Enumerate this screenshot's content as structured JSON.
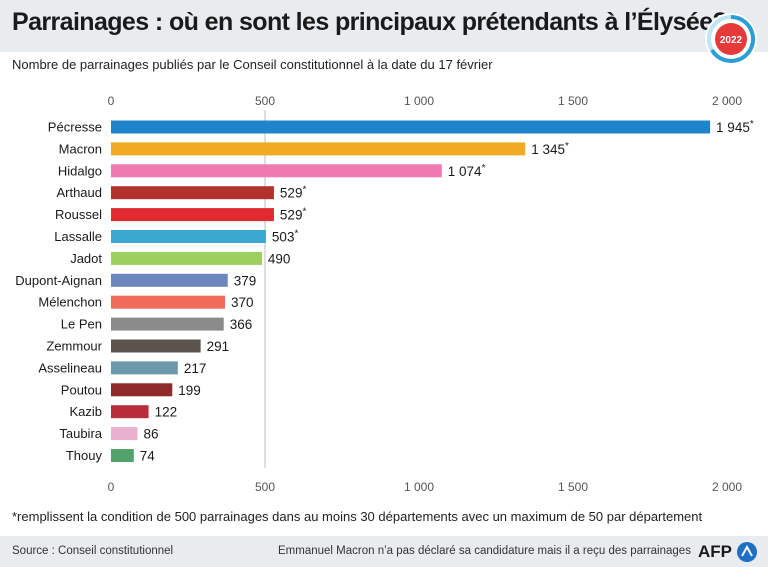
{
  "header": {
    "title": "Parrainages : où en sont les principaux prétendants à l’Élysée?",
    "badge": "2022"
  },
  "subtitle": "Nombre de parrainages publiés par le Conseil constitutionnel à la date du 17 février",
  "footnote": "*remplissent la condition de 500 parrainages dans au moins 30 départements avec un maximum de 50 par département",
  "footer": {
    "source": "Source : Conseil constitutionnel",
    "note": "Emmanuel Macron n’a pas déclaré sa candidature mais il a reçu des parrainages",
    "logo": "AFP"
  },
  "chart_data": {
    "type": "bar",
    "orientation": "horizontal",
    "xlim": [
      0,
      2000
    ],
    "ticks": [
      0,
      500,
      1000,
      1500,
      2000
    ],
    "tick_labels": [
      "0",
      "500",
      "1 000",
      "1 500",
      "2 000"
    ],
    "reference_line": 500,
    "categories": [
      "Pécresse",
      "Macron",
      "Hidalgo",
      "Arthaud",
      "Roussel",
      "Lassalle",
      "Jadot",
      "Dupont-Aignan",
      "Mélenchon",
      "Le Pen",
      "Zemmour",
      "Asselineau",
      "Poutou",
      "Kazib",
      "Taubira",
      "Thouy"
    ],
    "values": [
      1945,
      1345,
      1074,
      529,
      529,
      503,
      490,
      379,
      370,
      366,
      291,
      217,
      199,
      122,
      86,
      74
    ],
    "value_labels": [
      "1 945",
      "1 345",
      "1 074",
      "529",
      "529",
      "503",
      "490",
      "379",
      "370",
      "366",
      "291",
      "217",
      "199",
      "122",
      "86",
      "74"
    ],
    "starred": [
      true,
      true,
      true,
      true,
      true,
      true,
      false,
      false,
      false,
      false,
      false,
      false,
      false,
      false,
      false,
      false
    ],
    "colors": [
      "#1f84cc",
      "#f0ab22",
      "#ef79b1",
      "#b3312c",
      "#e02a2f",
      "#3aa8d0",
      "#9bcf5e",
      "#6d86be",
      "#ef6b5a",
      "#8b8b8b",
      "#5a534e",
      "#6c98ac",
      "#8f2b2b",
      "#b82d3a",
      "#e9b0cf",
      "#52a26c"
    ]
  }
}
